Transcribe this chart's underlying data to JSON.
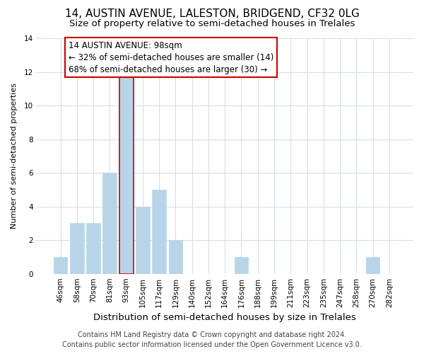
{
  "title": "14, AUSTIN AVENUE, LALESTON, BRIDGEND, CF32 0LG",
  "subtitle": "Size of property relative to semi-detached houses in Trelales",
  "xlabel": "Distribution of semi-detached houses by size in Trelales",
  "ylabel": "Number of semi-detached properties",
  "footer_line1": "Contains HM Land Registry data © Crown copyright and database right 2024.",
  "footer_line2": "Contains public sector information licensed under the Open Government Licence v3.0.",
  "bar_labels": [
    "46sqm",
    "58sqm",
    "70sqm",
    "81sqm",
    "93sqm",
    "105sqm",
    "117sqm",
    "129sqm",
    "140sqm",
    "152sqm",
    "164sqm",
    "176sqm",
    "188sqm",
    "199sqm",
    "211sqm",
    "223sqm",
    "235sqm",
    "247sqm",
    "258sqm",
    "270sqm",
    "282sqm"
  ],
  "bar_values": [
    1,
    3,
    3,
    6,
    12,
    4,
    5,
    2,
    0,
    0,
    0,
    1,
    0,
    0,
    0,
    0,
    0,
    0,
    0,
    1,
    0
  ],
  "highlight_bar_index": 4,
  "highlight_bar_color": "#b8d4e8",
  "highlight_bar_edge_color": "#cc0000",
  "normal_bar_color": "#b8d4e8",
  "normal_bar_edge_color": "#b8d4e8",
  "ylim": [
    0,
    14
  ],
  "yticks": [
    0,
    2,
    4,
    6,
    8,
    10,
    12,
    14
  ],
  "annotation_title": "14 AUSTIN AVENUE: 98sqm",
  "annotation_line1": "← 32% of semi-detached houses are smaller (14)",
  "annotation_line2": "68% of semi-detached houses are larger (30) →",
  "annotation_box_facecolor": "#ffffff",
  "annotation_box_edgecolor": "#cc0000",
  "background_color": "#ffffff",
  "grid_color": "#d0dce8",
  "title_fontsize": 11,
  "subtitle_fontsize": 9.5,
  "xlabel_fontsize": 9.5,
  "ylabel_fontsize": 8,
  "tick_fontsize": 7.5,
  "annotation_fontsize": 8.5,
  "footer_fontsize": 7
}
